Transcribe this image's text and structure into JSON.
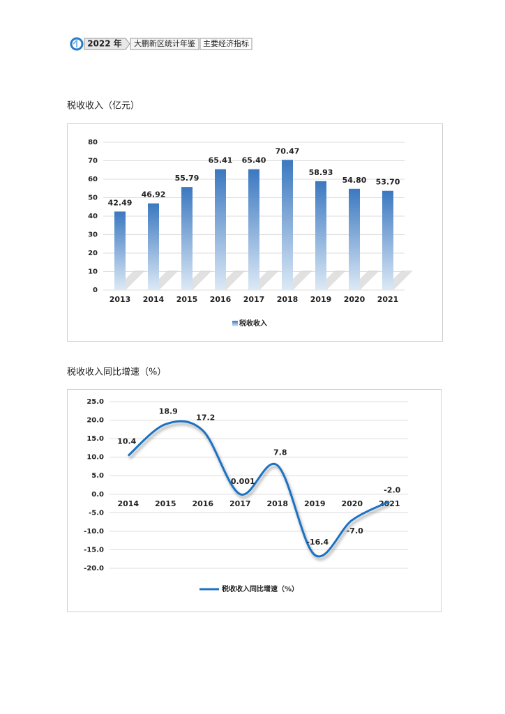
{
  "header": {
    "year": "2022 年",
    "book": "大鹏新区统计年鉴",
    "section": "主要经济指标"
  },
  "chart_data": [
    {
      "type": "bar",
      "title": "税收收入（亿元）",
      "categories": [
        "2013",
        "2014",
        "2015",
        "2016",
        "2017",
        "2018",
        "2019",
        "2020",
        "2021"
      ],
      "series": [
        {
          "name": "税收收入",
          "color": "#3b78c0",
          "values": [
            42.49,
            46.92,
            55.79,
            65.41,
            65.4,
            70.47,
            58.93,
            54.8,
            53.7
          ],
          "value_labels": [
            "42.49",
            "46.92",
            "55.79",
            "65.41",
            "65.40",
            "70.47",
            "58.93",
            "54.80",
            "53.70"
          ]
        }
      ],
      "ylim": [
        0,
        80
      ],
      "yticks": [
        0,
        10,
        20,
        30,
        40,
        50,
        60,
        70,
        80
      ],
      "grid": true,
      "legend": "bottom"
    },
    {
      "type": "line",
      "title": "税收收入同比增速（%）",
      "categories": [
        "2014",
        "2015",
        "2016",
        "2017",
        "2018",
        "2019",
        "2020",
        "2021"
      ],
      "series": [
        {
          "name": "税收收入同比增速（%）",
          "color": "#1f72c2",
          "values": [
            10.4,
            18.9,
            17.2,
            0.001,
            7.8,
            -16.4,
            -7.0,
            -2.0
          ],
          "value_labels": [
            "10.4",
            "18.9",
            "17.2",
            "0.001",
            "7.8",
            "-16.4",
            "-7.0",
            "-2.0"
          ]
        }
      ],
      "ylim": [
        -20,
        25
      ],
      "yticks": [
        {
          "value": 25,
          "label": "25.0"
        },
        {
          "value": 20,
          "label": "20.0"
        },
        {
          "value": 15,
          "label": "15.0"
        },
        {
          "value": 10,
          "label": "10.0"
        },
        {
          "value": 5,
          "label": "5.0"
        },
        {
          "value": 0,
          "label": "0.0"
        },
        {
          "value": -5,
          "label": "-5.0"
        },
        {
          "value": -10,
          "label": "-10.0"
        },
        {
          "value": -15,
          "label": "-15.0"
        },
        {
          "value": -20,
          "label": "-20.0"
        }
      ],
      "grid": true,
      "legend": "bottom"
    }
  ]
}
